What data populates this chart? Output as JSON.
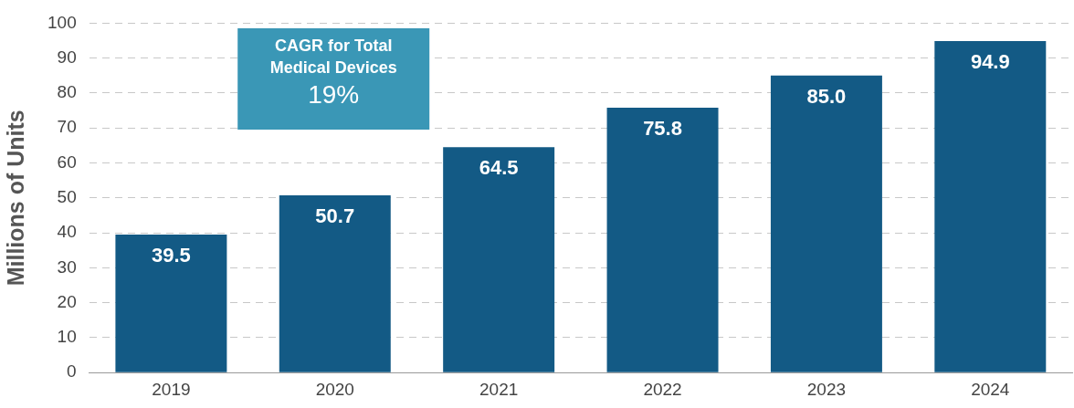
{
  "chart_data": {
    "type": "bar",
    "ylabel": "Millions of Units",
    "categories": [
      "2019",
      "2020",
      "2021",
      "2022",
      "2023",
      "2024"
    ],
    "values": [
      39.5,
      50.7,
      64.5,
      75.8,
      85.0,
      94.9
    ],
    "value_labels": [
      "39.5",
      "50.7",
      "64.5",
      "75.8",
      "85.0",
      "94.9"
    ],
    "color": "#135a85",
    "ylim": [
      0,
      100
    ],
    "yticks": [
      0,
      10,
      20,
      30,
      40,
      50,
      60,
      70,
      80,
      90,
      100
    ],
    "grid": "y",
    "legend": false,
    "annotations": [
      "CAGR for Total\nMedical Devices",
      "19%"
    ]
  }
}
